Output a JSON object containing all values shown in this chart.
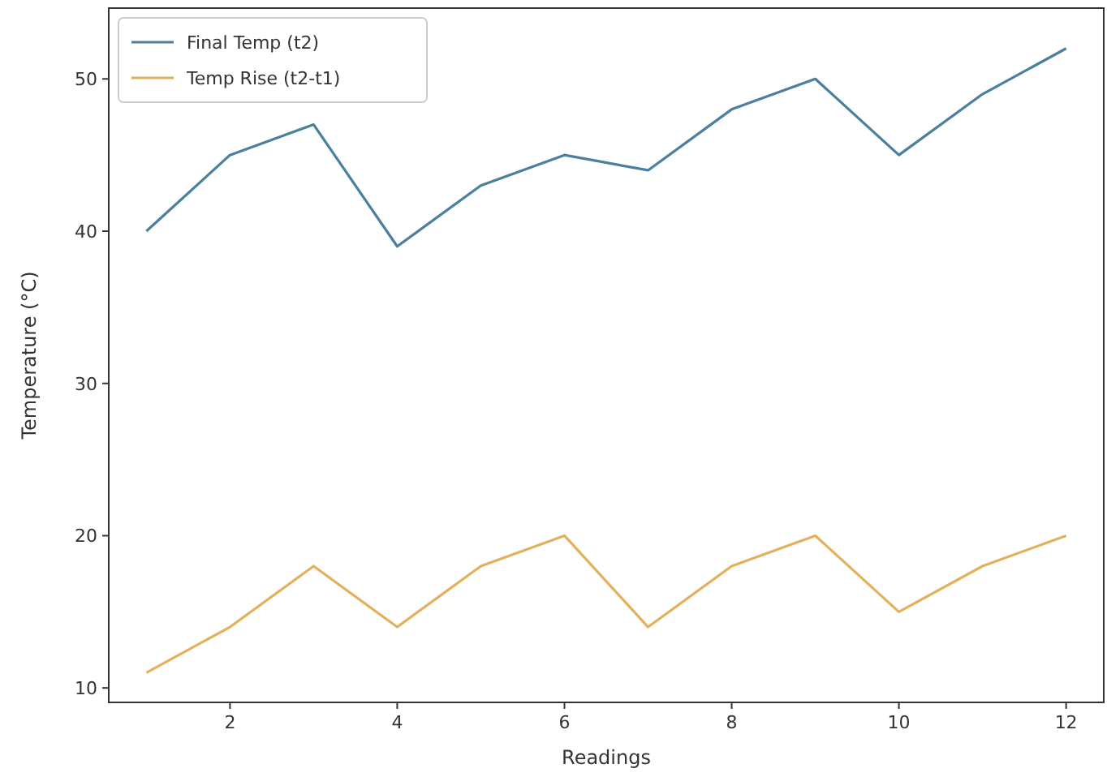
{
  "chart_data": {
    "type": "line",
    "xlabel": "Readings",
    "ylabel": "Temperature (°C)",
    "x": [
      1,
      2,
      3,
      4,
      5,
      6,
      7,
      8,
      9,
      10,
      11,
      12
    ],
    "series": [
      {
        "name": "Final Temp (t2)",
        "color": "#4a7f9e",
        "values": [
          40,
          45,
          47,
          39,
          43,
          45,
          44,
          48,
          50,
          45,
          49,
          52
        ]
      },
      {
        "name": "Temp Rise (t2-t1)",
        "color": "#e3b05c",
        "values": [
          11,
          14,
          18,
          14,
          18,
          20,
          14,
          18,
          20,
          15,
          18,
          20
        ]
      }
    ],
    "xlim": [
      0.55,
      12.45
    ],
    "ylim": [
      9.05,
      54.65
    ],
    "xticks": [
      2,
      4,
      6,
      8,
      10,
      12
    ],
    "yticks": [
      10,
      20,
      30,
      40,
      50
    ],
    "grid": false,
    "legend": "top left",
    "marker": "none",
    "line_style": "solid"
  }
}
